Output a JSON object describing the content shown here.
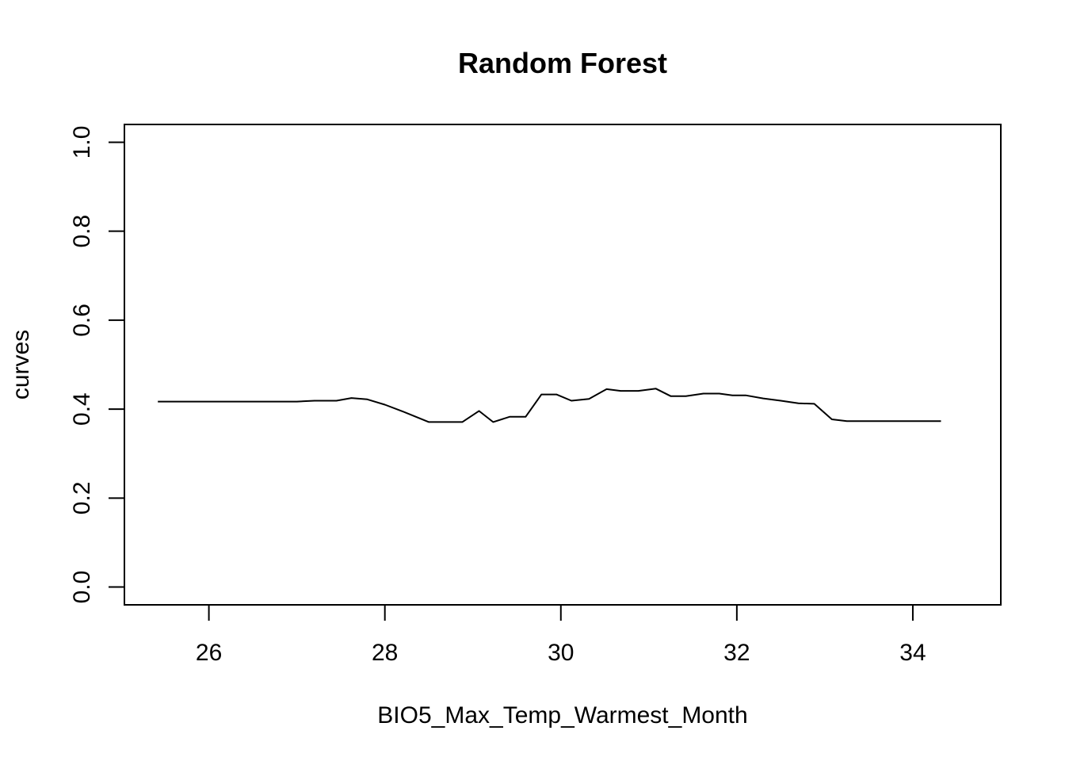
{
  "chart_data": {
    "type": "line",
    "title": "Random Forest",
    "xlabel": "BIO5_Max_Temp_Warmest_Month",
    "ylabel": "curves",
    "xlim": [
      25.04,
      35.0
    ],
    "ylim": [
      -0.04,
      1.04
    ],
    "xticks": [
      26,
      28,
      30,
      32,
      34
    ],
    "xtick_labels": [
      "26",
      "28",
      "30",
      "32",
      "34"
    ],
    "yticks": [
      0.0,
      0.2,
      0.4,
      0.6,
      0.8,
      1.0
    ],
    "ytick_labels": [
      "0.0",
      "0.2",
      "0.4",
      "0.6",
      "0.8",
      "1.0"
    ],
    "grid": false,
    "series": [
      {
        "x": [
          25.42,
          25.6,
          25.8,
          26.0,
          26.2,
          26.4,
          26.6,
          26.8,
          27.0,
          27.2,
          27.45,
          27.62,
          27.8,
          28.0,
          28.2,
          28.35,
          28.5,
          28.7,
          28.88,
          29.07,
          29.23,
          29.42,
          29.6,
          29.78,
          29.95,
          30.12,
          30.32,
          30.52,
          30.68,
          30.88,
          31.08,
          31.25,
          31.42,
          31.62,
          31.8,
          31.95,
          32.1,
          32.3,
          32.5,
          32.7,
          32.88,
          33.08,
          33.25,
          33.45,
          33.65,
          33.85,
          34.05,
          34.32
        ],
        "y": [
          0.417,
          0.417,
          0.417,
          0.417,
          0.417,
          0.417,
          0.417,
          0.417,
          0.417,
          0.419,
          0.419,
          0.425,
          0.422,
          0.41,
          0.395,
          0.383,
          0.371,
          0.371,
          0.371,
          0.396,
          0.371,
          0.383,
          0.383,
          0.433,
          0.433,
          0.419,
          0.423,
          0.445,
          0.441,
          0.441,
          0.446,
          0.429,
          0.429,
          0.435,
          0.435,
          0.431,
          0.431,
          0.424,
          0.419,
          0.413,
          0.412,
          0.377,
          0.373,
          0.373,
          0.373,
          0.373,
          0.373,
          0.373
        ]
      }
    ]
  }
}
